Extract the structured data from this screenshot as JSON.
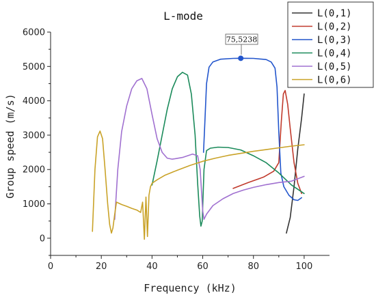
{
  "chart_data": {
    "type": "line",
    "title": "L-mode",
    "xlabel": "Frequency (kHz)",
    "ylabel": "Group speed (m/s)",
    "xlim": [
      0,
      110
    ],
    "ylim": [
      -500,
      6000
    ],
    "xticks": [
      "0",
      "20",
      "40",
      "60",
      "80",
      "100"
    ],
    "yticks": [
      "0",
      "1000",
      "2000",
      "3000",
      "4000",
      "5000",
      "6000"
    ],
    "xtick_values": [
      0,
      20,
      40,
      60,
      80,
      100
    ],
    "ytick_values": [
      0,
      1000,
      2000,
      3000,
      4000,
      5000,
      6000
    ],
    "grid": false,
    "legend_position": "top-right outside",
    "annotation": {
      "label": "75,5238",
      "x": 75,
      "y": 5238
    },
    "series": [
      {
        "name": "L(0,1)",
        "color": "#333333",
        "x": [
          93,
          94.5,
          96,
          97.5,
          99,
          100
        ],
        "y": [
          150,
          600,
          1500,
          2600,
          3500,
          4200
        ]
      },
      {
        "name": "L(0,2)",
        "color": "#c0392b",
        "x": [
          72,
          78,
          84,
          88,
          90,
          91,
          91.8,
          92.5,
          93.5,
          94.5,
          96,
          97.5,
          99
        ],
        "y": [
          1450,
          1620,
          1780,
          1950,
          2200,
          3400,
          4200,
          4300,
          3900,
          3200,
          2200,
          1600,
          1300
        ]
      },
      {
        "name": "L(0,3)",
        "color": "#2255cc",
        "x": [
          60.3,
          60.8,
          61.5,
          62.5,
          64,
          67,
          72,
          75,
          80,
          85,
          87,
          88.5,
          89.3,
          90,
          90.8,
          92,
          94,
          96,
          97.5,
          99
        ],
        "y": [
          2500,
          3300,
          4500,
          4980,
          5130,
          5210,
          5235,
          5238,
          5235,
          5200,
          5130,
          4950,
          4400,
          3100,
          1900,
          1500,
          1250,
          1120,
          1100,
          1180
        ]
      },
      {
        "name": "L(0,4)",
        "color": "#1a8a5a",
        "x": [
          40,
          42,
          44,
          46,
          48,
          50,
          52,
          54,
          55.5,
          57,
          58,
          58.8,
          59.3,
          59.8,
          60.5,
          61.5,
          63,
          66,
          70,
          75,
          80,
          85,
          90,
          95,
          100
        ],
        "y": [
          1550,
          2250,
          3000,
          3750,
          4350,
          4700,
          4830,
          4750,
          4200,
          3000,
          1600,
          650,
          350,
          500,
          2000,
          2550,
          2620,
          2650,
          2640,
          2570,
          2400,
          2200,
          1900,
          1550,
          1300
        ]
      },
      {
        "name": "L(0,5)",
        "color": "#a070d0",
        "x": [
          25.3,
          26.5,
          28,
          30,
          32,
          34,
          36,
          38,
          40,
          42,
          44,
          46,
          48,
          52,
          56,
          58,
          59,
          60,
          60.5,
          61.5,
          64,
          68,
          72,
          76,
          80,
          85,
          90,
          95,
          100
        ],
        "y": [
          550,
          2000,
          3100,
          3850,
          4350,
          4580,
          4650,
          4350,
          3600,
          2900,
          2500,
          2330,
          2300,
          2350,
          2450,
          2400,
          2000,
          800,
          550,
          700,
          950,
          1150,
          1300,
          1400,
          1480,
          1560,
          1620,
          1660,
          1800
        ]
      },
      {
        "name": "L(0,6)",
        "color": "#c9a227",
        "x": [
          16.5,
          17.5,
          18.5,
          19.5,
          20.5,
          21.5,
          22.5,
          23.3,
          24,
          24.6,
          25.3,
          26,
          28,
          30,
          32,
          34,
          35.5,
          36.3,
          37,
          37.6,
          38.2,
          38.8,
          39.4,
          40,
          42,
          45,
          50,
          55,
          60,
          65,
          70,
          75,
          80,
          85,
          90,
          95,
          100
        ],
        "y": [
          200,
          2000,
          2950,
          3120,
          2900,
          2000,
          1000,
          400,
          150,
          300,
          700,
          1050,
          980,
          930,
          870,
          820,
          750,
          1050,
          -30,
          1200,
          50,
          1250,
          1500,
          1600,
          1700,
          1830,
          1980,
          2120,
          2240,
          2330,
          2410,
          2470,
          2530,
          2580,
          2630,
          2680,
          2720
        ]
      }
    ]
  }
}
